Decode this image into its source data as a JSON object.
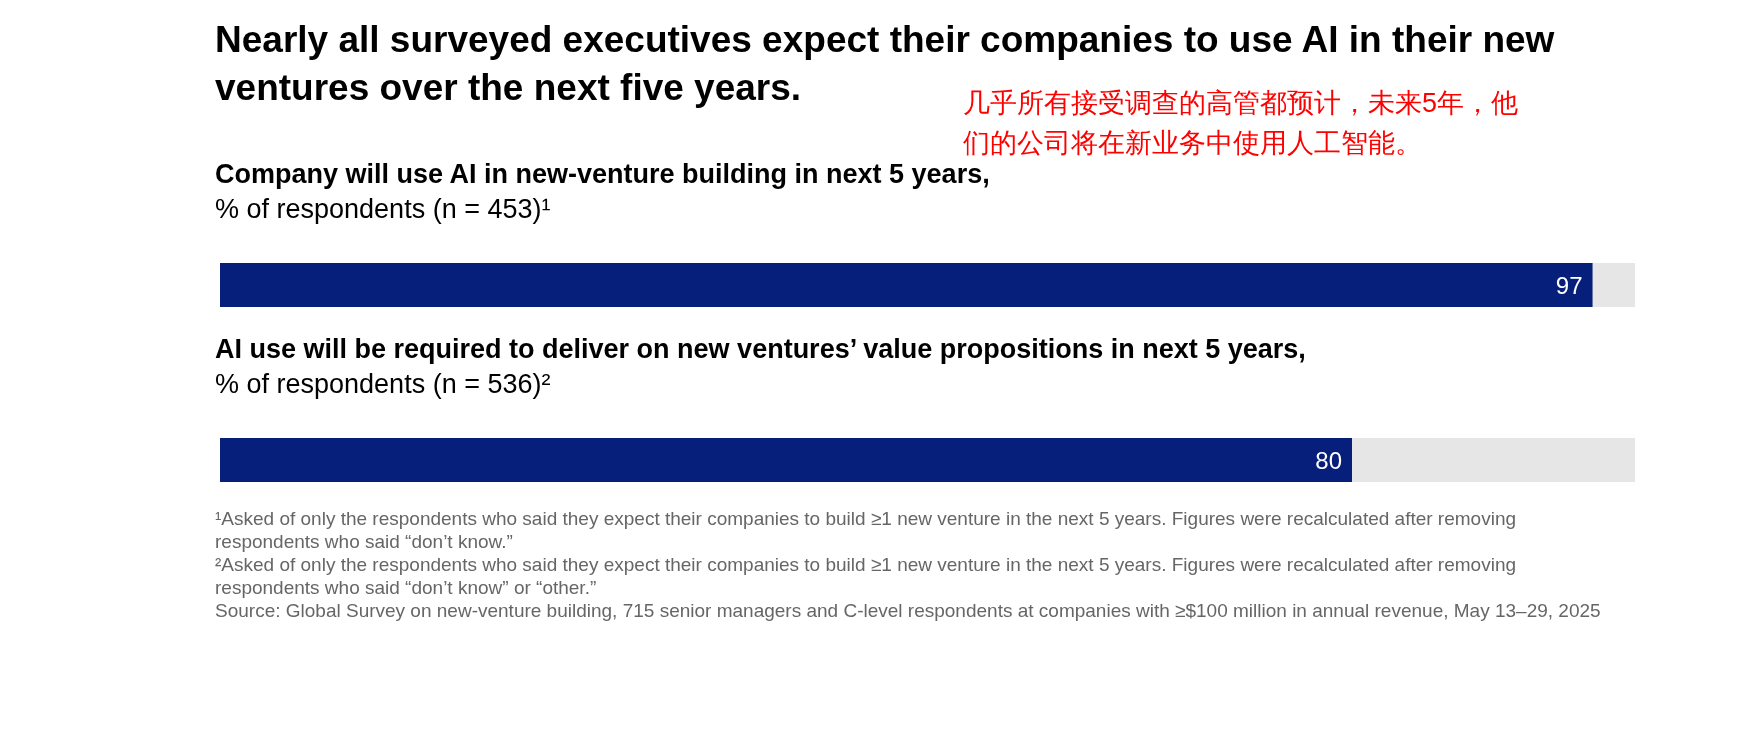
{
  "chart_data": {
    "type": "bar",
    "orientation": "horizontal",
    "title": "Nearly all surveyed executives expect their companies to use AI in their new ventures over the next five years.",
    "categories": [
      "Company will use AI in new-venture building in next 5 years,\n% of respondents (n = 453)¹",
      "AI use will be required to deliver on new ventures’ value propositions in next 5 years,\n% of respondents (n = 536)²"
    ],
    "values": [
      97,
      80
    ],
    "color": "#061f7a",
    "xlim": [
      0,
      100
    ],
    "tick_labels": "y",
    "data_labels": true,
    "annotations": [
      "几乎所有接受调查的高管都预计，未来5年，他们的公司将在新业务中使用人工智能。",
      "¹Asked of only the respondents who said they expect their companies to build ≥1 new venture in the next 5 years. Figures were recalculated after removing respondents who said “don’t know.”",
      "²Asked of only the respondents who said they expect their companies to build ≥1 new venture in the next 5 years. Figures were recalculated after removing respondents who said “don’t know” or “other.”",
      "Source: Global Survey on new-venture building, 715 senior managers and C-level respondents at companies with ≥$100 million in annual revenue, May 13–29, 2025"
    ]
  }
}
